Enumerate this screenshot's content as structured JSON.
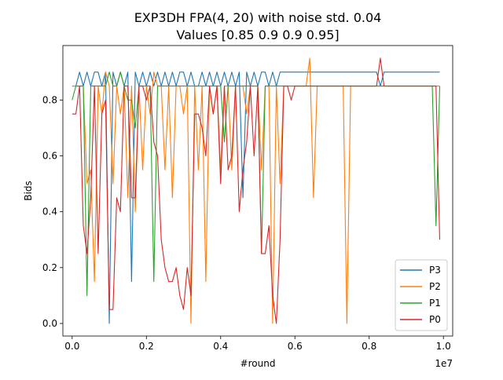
{
  "chart_data": {
    "type": "line",
    "title": "EXP3DH FPA(4, 20) with noise std. 0.04",
    "subtitle": "Values [0.85 0.9  0.9  0.95]",
    "xlabel": "#round",
    "ylabel": "Bids",
    "x_offset_label": "1e7",
    "x_unit_scale": 10000000,
    "xlim": [
      -250000,
      10250000
    ],
    "ylim": [
      -0.045,
      0.995
    ],
    "x_ticks": [
      0,
      2000000,
      4000000,
      6000000,
      8000000,
      10000000
    ],
    "x_tick_labels": [
      "0.0",
      "0.2",
      "0.4",
      "0.6",
      "0.8",
      "1.0"
    ],
    "y_ticks": [
      0.0,
      0.2,
      0.4,
      0.6,
      0.8
    ],
    "y_tick_labels": [
      "0.0",
      "0.2",
      "0.4",
      "0.6",
      "0.8"
    ],
    "grid": false,
    "legend_position": "lower-right",
    "x_start": 0,
    "x_step": 100000,
    "series": [
      {
        "name": "P3",
        "color": "#1f77b4",
        "values": [
          0.85,
          0.85,
          0.9,
          0.85,
          0.9,
          0.85,
          0.9,
          0.9,
          0.85,
          0.9,
          0.0,
          0.9,
          0.85,
          0.9,
          0.85,
          0.9,
          0.15,
          0.9,
          0.85,
          0.9,
          0.85,
          0.9,
          0.85,
          0.9,
          0.85,
          0.9,
          0.85,
          0.9,
          0.85,
          0.9,
          0.9,
          0.85,
          0.9,
          0.85,
          0.85,
          0.9,
          0.85,
          0.9,
          0.85,
          0.9,
          0.85,
          0.9,
          0.85,
          0.9,
          0.85,
          0.9,
          0.45,
          0.9,
          0.85,
          0.9,
          0.85,
          0.9,
          0.9,
          0.85,
          0.9,
          0.85,
          0.9,
          0.9,
          0.9,
          0.9,
          0.9,
          0.9,
          0.9,
          0.9,
          0.9,
          0.9,
          0.9,
          0.9,
          0.9,
          0.9,
          0.9,
          0.9,
          0.9,
          0.9,
          0.9,
          0.9,
          0.9,
          0.9,
          0.9,
          0.9,
          0.9,
          0.9,
          0.9,
          0.85,
          0.9,
          0.9,
          0.9,
          0.9,
          0.9,
          0.9,
          0.9,
          0.9,
          0.9,
          0.9,
          0.9,
          0.9,
          0.9,
          0.9,
          0.9,
          0.9
        ]
      },
      {
        "name": "P2",
        "color": "#ff7f0e",
        "values": [
          0.85,
          0.85,
          0.85,
          0.85,
          0.5,
          0.55,
          0.15,
          0.85,
          0.75,
          0.9,
          0.85,
          0.5,
          0.85,
          0.75,
          0.85,
          0.45,
          0.85,
          0.4,
          0.85,
          0.55,
          0.85,
          0.75,
          0.9,
          0.85,
          0.85,
          0.55,
          0.85,
          0.45,
          0.85,
          0.85,
          0.75,
          0.85,
          0.0,
          0.85,
          0.55,
          0.85,
          0.15,
          0.85,
          0.75,
          0.85,
          0.55,
          0.85,
          0.85,
          0.55,
          0.85,
          0.85,
          0.85,
          0.75,
          0.85,
          0.85,
          0.85,
          0.55,
          0.85,
          0.85,
          0.0,
          0.85,
          0.5,
          0.85,
          0.85,
          0.85,
          0.85,
          0.85,
          0.85,
          0.85,
          0.95,
          0.45,
          0.85,
          0.85,
          0.85,
          0.85,
          0.85,
          0.85,
          0.85,
          0.85,
          0.0,
          0.85,
          0.85,
          0.85,
          0.85,
          0.85,
          0.85,
          0.85,
          0.85,
          0.85,
          0.85,
          0.85,
          0.85,
          0.85,
          0.85,
          0.85,
          0.85,
          0.85,
          0.85,
          0.85,
          0.85,
          0.85,
          0.85,
          0.85,
          0.85,
          0.85
        ]
      },
      {
        "name": "P1",
        "color": "#2ca02c",
        "values": [
          0.8,
          0.85,
          0.85,
          0.85,
          0.1,
          0.85,
          0.85,
          0.85,
          0.85,
          0.85,
          0.9,
          0.85,
          0.85,
          0.9,
          0.85,
          0.8,
          0.8,
          0.7,
          0.85,
          0.85,
          0.85,
          0.85,
          0.15,
          0.85,
          0.85,
          0.85,
          0.85,
          0.85,
          0.85,
          0.85,
          0.85,
          0.85,
          0.85,
          0.85,
          0.85,
          0.85,
          0.85,
          0.85,
          0.85,
          0.85,
          0.85,
          0.65,
          0.85,
          0.85,
          0.85,
          0.85,
          0.85,
          0.85,
          0.85,
          0.85,
          0.85,
          0.25,
          0.85,
          0.85,
          0.85,
          0.85,
          0.85,
          0.85,
          0.85,
          0.85,
          0.85,
          0.85,
          0.85,
          0.85,
          0.85,
          0.85,
          0.85,
          0.85,
          0.85,
          0.85,
          0.85,
          0.85,
          0.85,
          0.85,
          0.85,
          0.85,
          0.85,
          0.85,
          0.85,
          0.85,
          0.85,
          0.85,
          0.85,
          0.85,
          0.85,
          0.85,
          0.85,
          0.85,
          0.85,
          0.85,
          0.85,
          0.85,
          0.85,
          0.85,
          0.85,
          0.85,
          0.85,
          0.85,
          0.35,
          0.85
        ]
      },
      {
        "name": "P0",
        "color": "#d62728",
        "values": [
          0.75,
          0.75,
          0.85,
          0.35,
          0.25,
          0.45,
          0.85,
          0.25,
          0.75,
          0.8,
          0.05,
          0.05,
          0.45,
          0.4,
          0.85,
          0.85,
          0.45,
          0.45,
          0.85,
          0.85,
          0.8,
          0.85,
          0.65,
          0.6,
          0.3,
          0.2,
          0.15,
          0.15,
          0.2,
          0.1,
          0.05,
          0.2,
          0.1,
          0.75,
          0.75,
          0.7,
          0.6,
          0.85,
          0.75,
          0.85,
          0.5,
          0.85,
          0.55,
          0.6,
          0.85,
          0.4,
          0.55,
          0.65,
          0.85,
          0.6,
          0.85,
          0.25,
          0.25,
          0.35,
          0.1,
          0.0,
          0.3,
          0.85,
          0.85,
          0.8,
          0.85,
          0.85,
          0.85,
          0.85,
          0.85,
          0.85,
          0.85,
          0.85,
          0.85,
          0.85,
          0.85,
          0.85,
          0.85,
          0.85,
          0.85,
          0.85,
          0.85,
          0.85,
          0.85,
          0.85,
          0.85,
          0.85,
          0.85,
          0.95,
          0.85,
          0.85,
          0.85,
          0.85,
          0.85,
          0.85,
          0.85,
          0.85,
          0.85,
          0.85,
          0.85,
          0.85,
          0.85,
          0.85,
          0.85,
          0.3
        ]
      }
    ]
  }
}
